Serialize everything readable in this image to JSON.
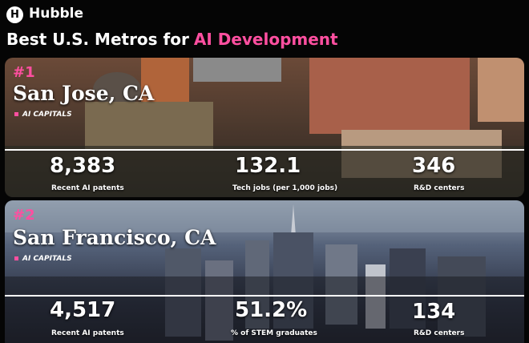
{
  "header": {
    "logo_letter": "H",
    "brand": "Hubble",
    "title_prefix": "Best U.S. Metros for",
    "title_highlight": "AI Development"
  },
  "cards": [
    {
      "rank": "#1",
      "city": "San Jose, CA",
      "tag": "AI CAPITALS",
      "stats": [
        {
          "value": "8,383",
          "label": "Recent AI patents"
        },
        {
          "value": "132.1",
          "label": "Tech jobs (per 1,000 jobs)"
        },
        {
          "value": "346",
          "label": "R&D centers"
        }
      ]
    },
    {
      "rank": "#2",
      "city": "San Francisco, CA",
      "tag": "AI CAPITALS",
      "stats": [
        {
          "value": "4,517",
          "label": "Recent AI patents"
        },
        {
          "value": "51.2%",
          "label": "% of STEM graduates"
        },
        {
          "value": "134",
          "label": "R&D centers"
        }
      ]
    }
  ]
}
